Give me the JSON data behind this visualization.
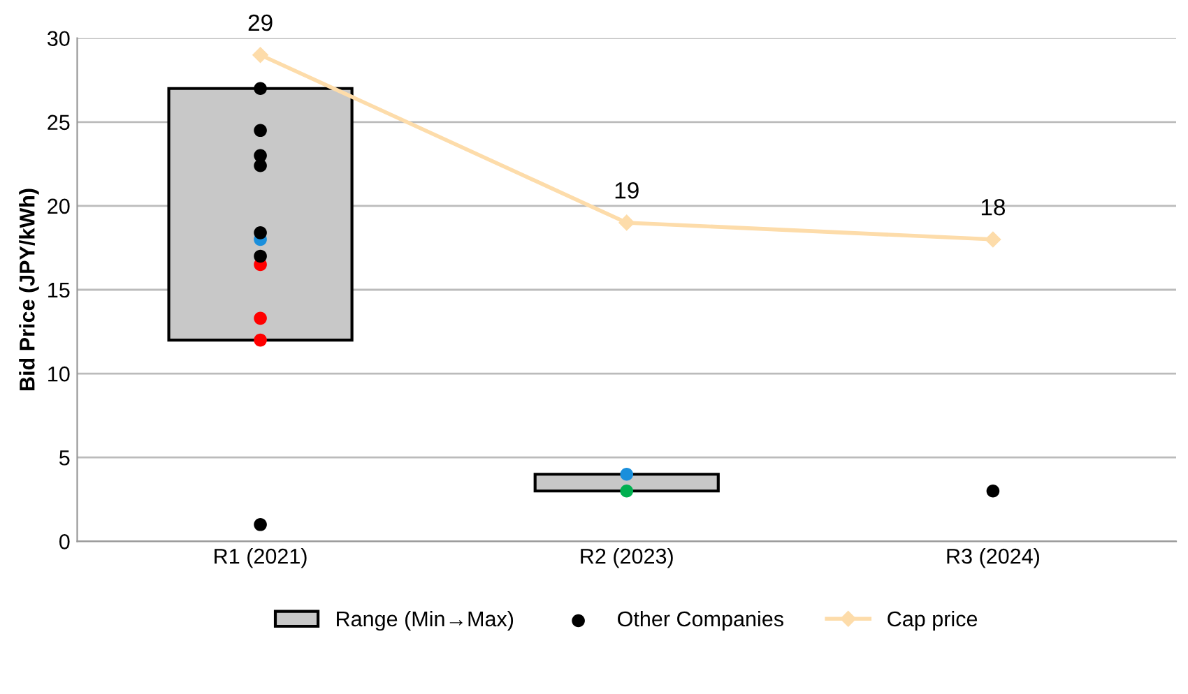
{
  "chart_data": {
    "type": "bar",
    "ylabel": "Bid Price (JPY/kWh)",
    "categories": [
      "R1 (2021)",
      "R2 (2023)",
      "R3 (2024)"
    ],
    "ylim": [
      0,
      30
    ],
    "yticks": [
      0,
      5,
      10,
      15,
      20,
      25,
      30
    ],
    "grid": "y",
    "legend": "bottom",
    "series": [
      {
        "name": "Range (Min→Max)",
        "color": "#c8c8c8",
        "base": [
          12,
          3,
          null
        ],
        "values": [
          15,
          1,
          null
        ]
      },
      {
        "type": "scatter",
        "color": "#ff0000",
        "x": [
          "R1 (2021)",
          "R1 (2021)",
          "R1 (2021)"
        ],
        "values": [
          16.5,
          13.3,
          12
        ]
      },
      {
        "type": "scatter",
        "color": "#1a8fdc",
        "x": [
          "R1 (2021)",
          "R2 (2023)"
        ],
        "values": [
          18,
          4
        ]
      },
      {
        "type": "scatter",
        "color": "#00b050",
        "x": [
          "R2 (2023)"
        ],
        "values": [
          3
        ]
      },
      {
        "name": "Other Companies",
        "type": "scatter",
        "color": "#000000",
        "x": [
          "R1 (2021)",
          "R1 (2021)",
          "R1 (2021)",
          "R1 (2021)",
          "R1 (2021)",
          "R1 (2021)",
          "R1 (2021)",
          "R3 (2024)"
        ],
        "values": [
          27,
          24.5,
          23,
          22.4,
          18.4,
          17,
          1,
          3
        ]
      },
      {
        "name": "Cap price",
        "type": "line",
        "color": "#fddcaa",
        "marker": "diamond",
        "values": [
          29,
          19,
          18
        ],
        "value_labels": [
          "29",
          "19",
          "18"
        ]
      }
    ]
  }
}
